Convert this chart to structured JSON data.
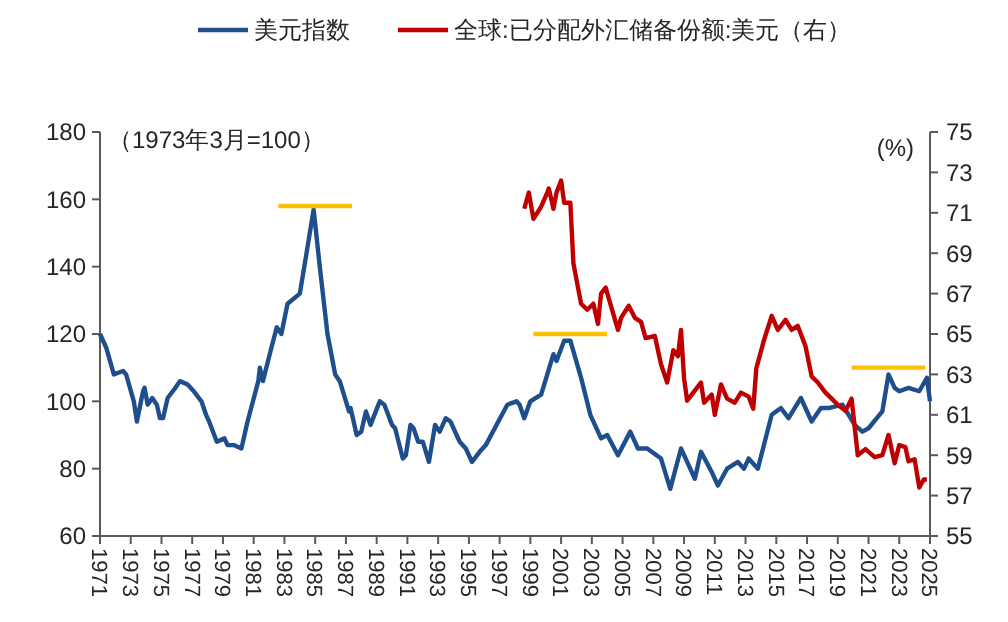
{
  "chart_data": {
    "type": "line",
    "legend": "top",
    "grid": false,
    "marker": "none",
    "line_style": "solid",
    "xlim": [
      1971,
      2025
    ],
    "xticks": [
      1971,
      1973,
      1975,
      1977,
      1979,
      1981,
      1983,
      1985,
      1987,
      1989,
      1991,
      1993,
      1995,
      1997,
      1999,
      2001,
      2003,
      2005,
      2007,
      2009,
      2011,
      2013,
      2015,
      2017,
      2019,
      2021,
      2023,
      2025
    ],
    "ylim": [
      60,
      180
    ],
    "yticks": [
      60,
      80,
      100,
      120,
      140,
      160,
      180
    ],
    "y2lim": [
      55,
      75
    ],
    "y2ticks": [
      55,
      57,
      59,
      61,
      63,
      65,
      67,
      69,
      71,
      73,
      75
    ],
    "annotations": [
      "（1973年3月=100）",
      "(%)"
    ],
    "series": [
      {
        "name": "美元指数",
        "color": "#1f4e8c",
        "x": [
          1971.0,
          1971.4,
          1971.9,
          1972.5,
          1972.7,
          1973.2,
          1973.4,
          1973.8,
          1973.9,
          1974.1,
          1974.4,
          1974.7,
          1974.9,
          1975.1,
          1975.4,
          1975.9,
          1976.2,
          1976.7,
          1977.1,
          1977.6,
          1977.9,
          1978.1,
          1978.6,
          1979.1,
          1979.3,
          1979.7,
          1980.2,
          1980.6,
          1981.3,
          1981.4,
          1981.6,
          1982.1,
          1982.5,
          1982.8,
          1983.2,
          1984.0,
          1984.4,
          1984.9,
          1985.3,
          1985.8,
          1986.3,
          1986.6,
          1987.2,
          1987.3,
          1987.7,
          1988.0,
          1988.3,
          1988.6,
          1989.2,
          1989.5,
          1990.0,
          1990.2,
          1990.7,
          1990.9,
          1991.2,
          1991.4,
          1991.7,
          1992.0,
          1992.4,
          1992.8,
          1993.1,
          1993.5,
          1993.8,
          1994.4,
          1994.8,
          1995.2,
          1995.7,
          1996.1,
          1996.8,
          1997.5,
          1998.1,
          1998.3,
          1998.6,
          1999.0,
          1999.7,
          2000.1,
          2000.5,
          2000.7,
          2001.2,
          2001.6,
          2002.3,
          2002.9,
          2003.6,
          2004.0,
          2004.7,
          2005.5,
          2006.0,
          2006.6,
          2007.5,
          2008.1,
          2008.8,
          2009.2,
          2009.7,
          2010.1,
          2010.8,
          2011.2,
          2011.8,
          2012.5,
          2012.9,
          2013.2,
          2013.8,
          2014.7,
          2015.3,
          2015.8,
          2016.6,
          2017.3,
          2017.9,
          2018.4,
          2019.3,
          2020.1,
          2020.6,
          2021.0,
          2021.9,
          2022.3,
          2022.7,
          2023.0,
          2023.6,
          2024.3,
          2024.8,
          2025.0
        ],
        "values": [
          120,
          116,
          108,
          109,
          108,
          100,
          94,
          103,
          104,
          99,
          101,
          99,
          95,
          95,
          101,
          104,
          106,
          105,
          103,
          100,
          96,
          94,
          88,
          89,
          87,
          87,
          86,
          94,
          106,
          110,
          106,
          115,
          122,
          120,
          129,
          132,
          143,
          157,
          140,
          120,
          108,
          106,
          97,
          98,
          90,
          91,
          97,
          93,
          100,
          99,
          93,
          92,
          83,
          84,
          93,
          92,
          88,
          88,
          82,
          93,
          91,
          95,
          94,
          88,
          86,
          82,
          85,
          87,
          93,
          99,
          100,
          99,
          95,
          100,
          102,
          108,
          114,
          112,
          118,
          118,
          107,
          96,
          89,
          90,
          84,
          91,
          86,
          86,
          83,
          74,
          86,
          82,
          77,
          85,
          79,
          75,
          80,
          82,
          80,
          83,
          80,
          96,
          98,
          95,
          101,
          94,
          98,
          98,
          99,
          93,
          91,
          92,
          97,
          108,
          104,
          103,
          104,
          103,
          107,
          100
        ]
      },
      {
        "name": "全球:已分配外汇储备份额:美元（右）",
        "color": "#c00000",
        "axis": "y2",
        "x": [
          1998.6,
          1998.9,
          1999.2,
          1999.7,
          2000.1,
          2000.2,
          2000.5,
          2000.7,
          2001.0,
          2001.2,
          2001.6,
          2001.8,
          2002.3,
          2002.7,
          2003.1,
          2003.4,
          2003.6,
          2003.9,
          2004.2,
          2004.7,
          2004.9,
          2005.4,
          2005.8,
          2006.2,
          2006.5,
          2007.1,
          2007.5,
          2007.9,
          2008.3,
          2008.6,
          2008.8,
          2009.0,
          2009.2,
          2009.7,
          2010.1,
          2010.3,
          2010.8,
          2011.0,
          2011.4,
          2011.8,
          2012.3,
          2012.7,
          2013.2,
          2013.5,
          2013.7,
          2014.2,
          2014.7,
          2015.1,
          2015.6,
          2016.0,
          2016.4,
          2016.9,
          2017.3,
          2017.7,
          2018.2,
          2018.6,
          2019.0,
          2019.5,
          2019.9,
          2020.3,
          2020.8,
          2021.4,
          2021.9,
          2022.3,
          2022.7,
          2023.0,
          2023.4,
          2023.6,
          2024.0,
          2024.3,
          2024.6,
          2024.8
        ],
        "values": [
          71.2,
          72.0,
          70.7,
          71.3,
          72.0,
          72.2,
          71.2,
          72.0,
          72.6,
          71.5,
          71.5,
          68.5,
          66.5,
          66.2,
          66.5,
          65.5,
          67.0,
          67.3,
          66.5,
          65.2,
          65.8,
          66.4,
          65.8,
          65.6,
          64.8,
          64.9,
          63.5,
          62.6,
          64.2,
          63.9,
          65.2,
          62.8,
          61.7,
          62.2,
          62.6,
          61.6,
          62.0,
          61.0,
          62.5,
          61.8,
          61.6,
          62.1,
          61.9,
          61.3,
          63.3,
          64.7,
          65.9,
          65.2,
          65.7,
          65.2,
          65.4,
          64.4,
          62.9,
          62.6,
          62.1,
          61.8,
          61.5,
          61.2,
          61.8,
          59.0,
          59.3,
          58.9,
          59.0,
          60.0,
          58.6,
          59.5,
          59.4,
          58.7,
          58.8,
          57.4,
          57.8,
          57.8
        ]
      },
      {
        "color": "#ffc000",
        "x": [
          1982.6,
          1987.4
        ],
        "values": [
          158,
          158
        ]
      },
      {
        "color": "#ffc000",
        "x": [
          1999.2,
          2004.0
        ],
        "values": [
          120,
          120
        ]
      },
      {
        "color": "#ffc000",
        "x": [
          2019.9,
          2024.7
        ],
        "values": [
          110,
          110
        ]
      }
    ]
  }
}
